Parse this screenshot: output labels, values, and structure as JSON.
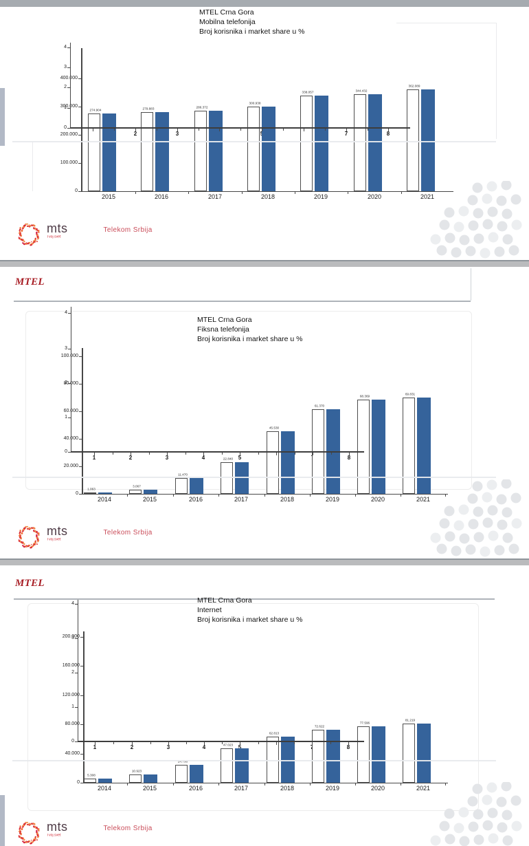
{
  "chart_data": [
    {
      "type": "bar",
      "title_lines": [
        "MTEL Crna Gora",
        "Mobilna telefonija",
        "Broj korisnika i market share u %"
      ],
      "categories": [
        "2015",
        "2016",
        "2017",
        "2018",
        "2019",
        "2020",
        "2021"
      ],
      "series": [
        {
          "name": "Broj korisnika (okvir)",
          "values": [
            274904,
            279883,
            286372,
            300938,
            338057,
            344432,
            362089
          ]
        },
        {
          "name": "Broj korisnika (plavo)",
          "values": [
            274904,
            279883,
            286372,
            300938,
            338057,
            344432,
            362089
          ]
        }
      ],
      "bar_labels": [
        "274.904",
        "279.883",
        "286.372",
        "300.938",
        "338.057",
        "344.432",
        "362.089"
      ],
      "y_axis": {
        "ticks": [
          "0",
          "100.000",
          "200.000",
          "300.000",
          "400.000"
        ],
        "max": 400000
      },
      "overlay_axis": {
        "y_ticks": [
          "0",
          "1",
          "2",
          "3",
          "4"
        ],
        "x_ticks": [
          "1",
          "2",
          "3",
          "4",
          "5",
          "6",
          "7",
          "8"
        ]
      },
      "grid": false,
      "legend": "none"
    },
    {
      "type": "bar",
      "title_lines": [
        "MTEL Crna Gora",
        "Fiksna telefonija",
        "Broj korisnika i market share u %"
      ],
      "categories": [
        "2014",
        "2015",
        "2016",
        "2017",
        "2018",
        "2019",
        "2020",
        "2021"
      ],
      "series": [
        {
          "name": "Broj korisnika (okvir)",
          "values": [
            1063,
            3067,
            11470,
            22840,
            45530,
            61370,
            68369,
            69831
          ]
        },
        {
          "name": "Broj korisnika (plavo)",
          "values": [
            1063,
            3067,
            11470,
            22840,
            45530,
            61370,
            68369,
            69831
          ]
        }
      ],
      "bar_labels": [
        "1.063",
        "3.067",
        "11.470",
        "22.840",
        "45.530",
        "61.370",
        "68.369",
        "69.831"
      ],
      "y_axis": {
        "ticks": [
          "0",
          "20.000",
          "40.000",
          "60.000",
          "80.000",
          "100.000"
        ],
        "max": 100000
      },
      "overlay_axis": {
        "y_ticks": [
          "0",
          "1",
          "2",
          "3",
          "4"
        ],
        "x_ticks": [
          "1",
          "2",
          "3",
          "4",
          "5",
          "6",
          "7",
          "8"
        ]
      },
      "grid": false,
      "legend": "none"
    },
    {
      "type": "bar",
      "title_lines": [
        "MTEL Crna Gora",
        "Internet",
        "Broj korisnika i market share u %"
      ],
      "categories": [
        "2014",
        "2015",
        "2016",
        "2017",
        "2018",
        "2019",
        "2020",
        "2021"
      ],
      "series": [
        {
          "name": "Broj korisnika (okvir)",
          "values": [
            5308,
            10923,
            24796,
            47023,
            62813,
            72622,
            77596,
            81219
          ]
        },
        {
          "name": "Broj korisnika (plavo)",
          "values": [
            5308,
            10923,
            24796,
            47023,
            62813,
            72622,
            77596,
            81219
          ]
        }
      ],
      "bar_labels": [
        "5.308",
        "10.923",
        "24.796",
        "47.023",
        "62.813",
        "72.622",
        "77.596",
        "81.219"
      ],
      "y_axis": {
        "ticks": [
          "0",
          "40.000",
          "80.000",
          "120.000",
          "160.000",
          "200.000"
        ],
        "max": 200000
      },
      "overlay_axis": {
        "y_ticks": [
          "0",
          "1",
          "2",
          "3",
          "4"
        ],
        "x_ticks": [
          "1",
          "2",
          "3",
          "4",
          "5",
          "6",
          "7",
          "8"
        ]
      },
      "grid": false,
      "legend": "none"
    }
  ],
  "slides": [
    {
      "header": ""
    },
    {
      "header": "MTEL"
    },
    {
      "header": "MTEL"
    }
  ],
  "footer": {
    "logo_text": "mts",
    "logo_tagline": "Tvoj svet",
    "company": "Telekom Srbija"
  },
  "colors": {
    "bar_blue": "#35639B",
    "bar_outline": "#4C4C4C",
    "mtel_red": "#A81E25",
    "telekom_red": "#C94B58",
    "logo_wordmark": "#4E3B46",
    "logo_tagline_red": "#CF2430",
    "axis": "#474747",
    "decor_dot": "#E3E5E8"
  }
}
